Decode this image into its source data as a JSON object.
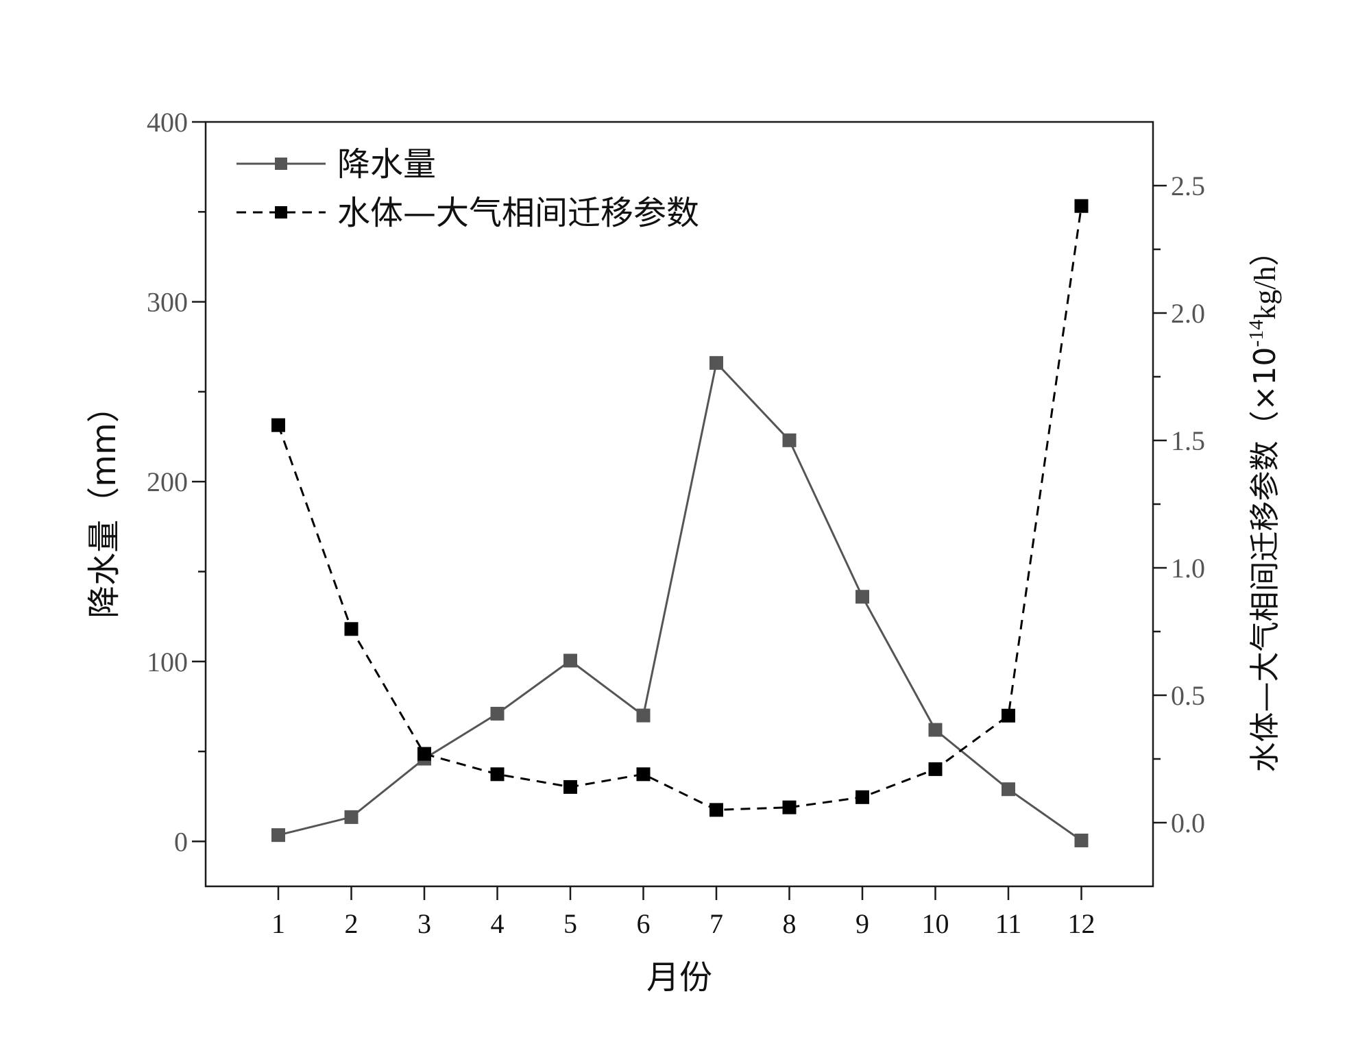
{
  "chart_data": {
    "type": "line",
    "x_label": "月份",
    "categories": [
      "1",
      "2",
      "3",
      "4",
      "5",
      "6",
      "7",
      "8",
      "9",
      "10",
      "11",
      "12"
    ],
    "y_left": {
      "label": "降水量（mm）",
      "range": [
        -25,
        400
      ],
      "ticks": [
        0,
        100,
        200,
        300,
        400
      ]
    },
    "y_right": {
      "label_prefix": "水体—大气相间迁移参数（×10",
      "label_exponent": "-14",
      "label_suffix": "kg/h）",
      "range": [
        -0.25,
        2.75
      ],
      "ticks": [
        "0.0",
        "0.5",
        "1.0",
        "1.5",
        "2.0",
        "2.5"
      ]
    },
    "series": [
      {
        "name": "降水量",
        "axis": "left",
        "line_style": "solid",
        "color": "#555555",
        "values": [
          3.5,
          13.5,
          46,
          71,
          100.5,
          70,
          266,
          223,
          136,
          62,
          29,
          0.5
        ]
      },
      {
        "name": "水体—大气相间迁移参数",
        "axis": "right",
        "line_style": "dashed",
        "color": "#000000",
        "values": [
          1.56,
          0.76,
          0.27,
          0.19,
          0.14,
          0.19,
          0.05,
          0.06,
          0.1,
          0.21,
          0.42,
          2.42
        ]
      }
    ],
    "legend_position": "top-left",
    "grid": false
  }
}
